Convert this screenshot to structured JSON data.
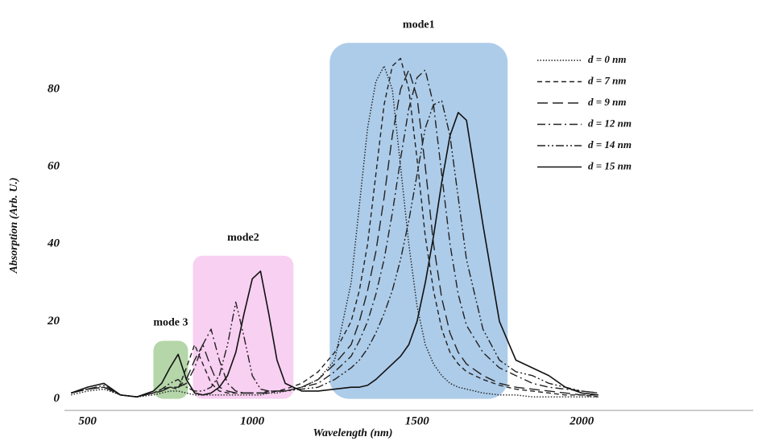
{
  "chart_data": {
    "type": "line",
    "x_label": "Wavelength (nm)",
    "y_label": "Absorption (Arb. U.)",
    "xlim": [
      430,
      2520
    ],
    "ylim": [
      -3,
      101
    ],
    "xticks": [
      500,
      1000,
      1500,
      2000
    ],
    "yticks": [
      0,
      20,
      40,
      60,
      80
    ],
    "grid": false,
    "legend": "upper right",
    "x": [
      450,
      500,
      550,
      600,
      650,
      700,
      725,
      750,
      775,
      800,
      825,
      850,
      875,
      900,
      925,
      950,
      975,
      1000,
      1025,
      1050,
      1075,
      1100,
      1150,
      1200,
      1250,
      1300,
      1325,
      1350,
      1375,
      1400,
      1425,
      1450,
      1475,
      1500,
      1525,
      1550,
      1575,
      1600,
      1625,
      1650,
      1700,
      1750,
      1800,
      1850,
      1900,
      1950,
      2000,
      2050
    ],
    "series": [
      {
        "name": "d = 0 nm",
        "color": "#222222",
        "dash": "dotted",
        "values": [
          1,
          2,
          2.5,
          1,
          0.5,
          1,
          1.5,
          2,
          2,
          1.5,
          1,
          1,
          1,
          1,
          1,
          1,
          1,
          1,
          1,
          1.5,
          1.5,
          2,
          3,
          5,
          10,
          30,
          50,
          70,
          82,
          86,
          80,
          60,
          40,
          24,
          14,
          9,
          6,
          4,
          3,
          2.5,
          1.5,
          1,
          1,
          0.5,
          0.5,
          0.5,
          0.5,
          0.5
        ]
      },
      {
        "name": "d = 7 nm",
        "color": "#222222",
        "dash": "dashed",
        "values": [
          1.5,
          2.5,
          3,
          1,
          0.5,
          1.5,
          2,
          3,
          2.5,
          8,
          14,
          9,
          4,
          2,
          1.5,
          1.5,
          1.5,
          1.5,
          1.5,
          2,
          2,
          2.5,
          4,
          7,
          12,
          20,
          28,
          40,
          58,
          76,
          86,
          88,
          80,
          62,
          42,
          28,
          18,
          12,
          9,
          7,
          5,
          3.5,
          2.5,
          2,
          1.5,
          1,
          1,
          0.5
        ]
      },
      {
        "name": "d = 9 nm",
        "color": "#222222",
        "dash": "long-dash",
        "values": [
          1.5,
          2.5,
          3,
          1,
          0.5,
          1.5,
          2,
          3,
          3,
          5,
          10,
          14,
          8,
          3,
          2,
          1.5,
          1.5,
          1.5,
          1.5,
          1.5,
          2,
          2,
          3,
          5,
          9,
          14,
          20,
          28,
          38,
          52,
          68,
          80,
          85,
          78,
          60,
          40,
          26,
          17,
          12,
          9,
          6,
          4,
          3,
          2.5,
          2,
          1.5,
          1,
          1
        ]
      },
      {
        "name": "d = 12 nm",
        "color": "#222222",
        "dash": "dash-dot",
        "values": [
          1.5,
          2.5,
          3,
          1,
          0.5,
          1.5,
          2.5,
          3,
          3,
          4,
          8,
          14,
          18,
          10,
          4,
          2,
          1.5,
          1.5,
          1.5,
          1.5,
          2,
          2,
          3,
          4,
          7,
          11,
          15,
          20,
          27,
          36,
          48,
          62,
          75,
          83,
          85,
          76,
          58,
          40,
          27,
          19,
          12,
          8,
          6,
          4,
          3,
          2.5,
          2,
          1.5
        ]
      },
      {
        "name": "d = 14 nm",
        "color": "#222222",
        "dash": "dash-dot-dot",
        "values": [
          1.5,
          2.5,
          3.5,
          1,
          0.5,
          1.5,
          2.5,
          4,
          5,
          3,
          2,
          2,
          3,
          6,
          14,
          25,
          16,
          6,
          2.5,
          2,
          2,
          2,
          2.5,
          3,
          5,
          8,
          10,
          13,
          17,
          22,
          28,
          36,
          46,
          58,
          70,
          76,
          77,
          68,
          52,
          36,
          18,
          10,
          7,
          6,
          4,
          3,
          2,
          1.5
        ]
      },
      {
        "name": "d = 15 nm",
        "color": "#111111",
        "dash": "solid",
        "values": [
          1.5,
          3,
          4,
          1,
          0.5,
          2,
          4,
          8,
          11.5,
          5,
          1.5,
          1,
          1.5,
          3,
          6,
          12,
          22,
          31,
          33,
          22,
          10,
          4,
          2,
          2,
          2.5,
          3,
          3,
          3.5,
          5,
          7,
          9,
          11,
          14,
          20,
          30,
          42,
          56,
          68,
          74,
          72,
          45,
          20,
          10,
          8,
          6,
          3,
          1.5,
          1
        ]
      }
    ],
    "regions": [
      {
        "text": "mode1",
        "x0": 1235,
        "x1": 1775,
        "y0": 0,
        "y1": 92,
        "color": "#9fc3e5"
      },
      {
        "text": "mode2",
        "x0": 820,
        "x1": 1125,
        "y0": 0,
        "y1": 37,
        "color": "#f7c8f0"
      },
      {
        "text": "mode 3",
        "x0": 700,
        "x1": 805,
        "y0": 0,
        "y1": 15,
        "color": "#a8cf9a"
      }
    ]
  }
}
